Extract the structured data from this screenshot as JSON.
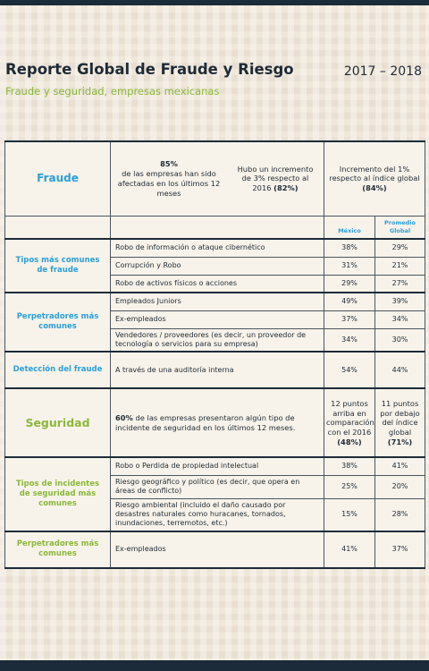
{
  "header": {
    "title": "Reporte Global de Fraude y Riesgo",
    "years": "2017 – 2018",
    "subtitle": "Fraude y seguridad, empresas mexicanas"
  },
  "fraud": {
    "label": "Fraude",
    "stat": {
      "highlight": "85%",
      "text": "de las empresas han sido afectadas en los últimos 12 meses"
    },
    "change": {
      "text": "Hubo un incremento de 3% respecto al 2016",
      "highlight": "(82%)"
    },
    "global": {
      "text": "Incremento del 1% respecto al índice global",
      "highlight": "(84%)"
    }
  },
  "columns": [
    "México",
    "Promedio Global"
  ],
  "fraud_groups": [
    {
      "label": "Tipos más comunes de fraude",
      "rows": [
        {
          "item": "Robo de información o ataque cibernético",
          "mexico": "38%",
          "global": "29%"
        },
        {
          "item": "Corrupción y Robo",
          "mexico": "31%",
          "global": "21%"
        },
        {
          "item": "Robo de activos físicos o acciones",
          "mexico": "29%",
          "global": "27%"
        }
      ]
    },
    {
      "label": "Perpetradores más comunes",
      "rows": [
        {
          "item": "Empleados Juniors",
          "mexico": "49%",
          "global": "39%"
        },
        {
          "item": "Ex-empleados",
          "mexico": "37%",
          "global": "34%"
        },
        {
          "item": "Vendedores / proveedores (es decir, un proveedor de tecnología o servicios para su empresa)",
          "mexico": "34%",
          "global": "30%"
        }
      ]
    },
    {
      "label": "Detección del fraude",
      "rows": [
        {
          "item": "A través de una auditoría interna",
          "mexico": "54%",
          "global": "44%"
        }
      ]
    }
  ],
  "security": {
    "label": "Seguridad",
    "summary": {
      "highlight": "60%",
      "text": "de las empresas presentaron algún tipo de incidente de seguridad en los últimos 12 meses."
    },
    "mexico": {
      "text": "12 puntos arriba en comparación con el 2016",
      "highlight": "(48%)"
    },
    "global": {
      "text": "11 puntos por debajo del índice global",
      "highlight": "(71%)"
    }
  },
  "security_groups": [
    {
      "label": "Tipos de incidentes de seguridad más comunes",
      "rows": [
        {
          "item": "Robo o Perdida de propiedad intelectual",
          "mexico": "38%",
          "global": "41%"
        },
        {
          "item": "Riesgo geográfico y político (es decir, que opera en áreas de conflicto)",
          "mexico": "25%",
          "global": "20%"
        },
        {
          "item": "Riesgo ambiental (incluido el daño causado por desastres naturales como huracanes, tornados, inundaciones, terremotos, etc.)",
          "mexico": "15%",
          "global": "28%"
        }
      ]
    },
    {
      "label": "Perpetradores más comunes",
      "rows": [
        {
          "item": "Ex-empleados",
          "mexico": "41%",
          "global": "37%"
        }
      ]
    }
  ]
}
